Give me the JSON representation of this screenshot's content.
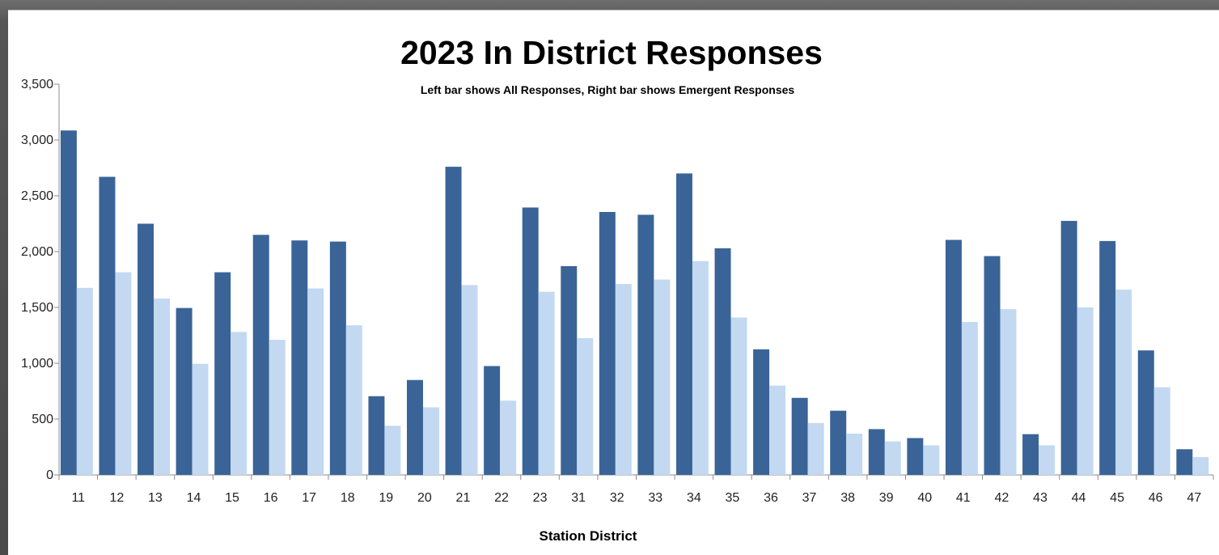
{
  "chart_data": {
    "type": "bar",
    "title": "2023 In District Responses",
    "subtitle": "Left bar shows All Responses, Right bar shows Emergent Responses",
    "xlabel": "Station District",
    "ylabel": "",
    "ylim": [
      0,
      3500
    ],
    "yticks": [
      "0",
      "500",
      "1,000",
      "1,500",
      "2,000",
      "2,500",
      "3,000",
      "3,500"
    ],
    "ytick_values": [
      0,
      500,
      1000,
      1500,
      2000,
      2500,
      3000,
      3500
    ],
    "grid": false,
    "categories": [
      "11",
      "12",
      "13",
      "14",
      "15",
      "16",
      "17",
      "18",
      "19",
      "20",
      "21",
      "22",
      "23",
      "31",
      "32",
      "33",
      "34",
      "35",
      "36",
      "37",
      "38",
      "39",
      "40",
      "41",
      "42",
      "43",
      "44",
      "45",
      "46",
      "47"
    ],
    "series": [
      {
        "color": "#3a6497",
        "values": [
          3085,
          2670,
          2250,
          1495,
          1815,
          2150,
          2100,
          2090,
          705,
          850,
          2760,
          975,
          2395,
          1870,
          2355,
          2330,
          2700,
          2030,
          1125,
          690,
          575,
          410,
          330,
          2105,
          1960,
          365,
          2275,
          2095,
          1115,
          230
        ]
      },
      {
        "color": "#c3d9f1",
        "values": [
          1675,
          1815,
          1580,
          995,
          1280,
          1210,
          1670,
          1340,
          440,
          605,
          1700,
          665,
          1640,
          1225,
          1710,
          1750,
          1915,
          1410,
          800,
          465,
          370,
          300,
          265,
          1370,
          1485,
          265,
          1500,
          1660,
          785,
          160
        ]
      }
    ]
  }
}
